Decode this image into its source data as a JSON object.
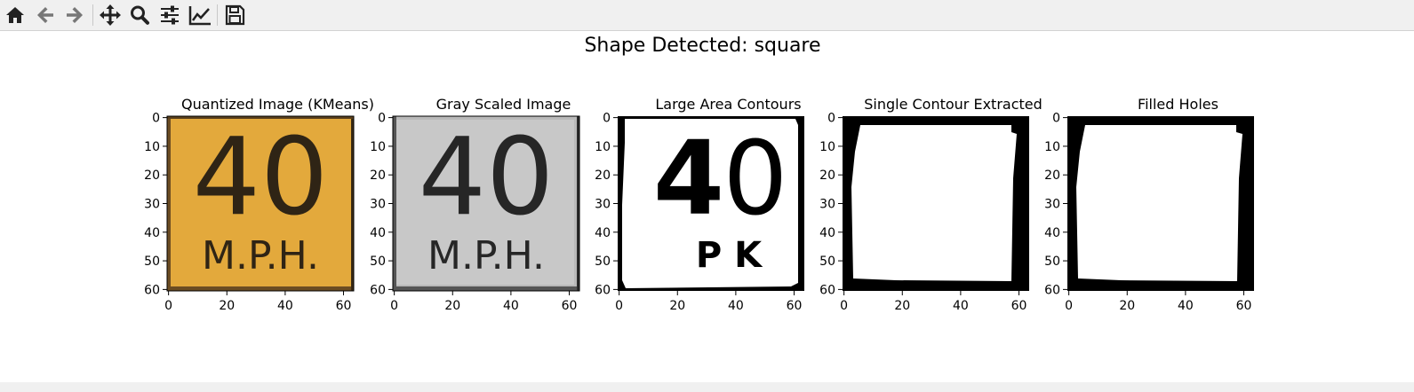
{
  "toolbar": {
    "buttons": [
      {
        "name": "home-button",
        "icon": "home-icon"
      },
      {
        "name": "back-button",
        "icon": "arrow-left-icon"
      },
      {
        "name": "forward-button",
        "icon": "arrow-right-icon"
      },
      {
        "name": "pan-button",
        "icon": "move-icon"
      },
      {
        "name": "zoom-button",
        "icon": "zoom-icon"
      },
      {
        "name": "configure-subplots-button",
        "icon": "sliders-icon"
      },
      {
        "name": "edit-axis-button",
        "icon": "chart-line-icon"
      },
      {
        "name": "save-button",
        "icon": "save-icon"
      }
    ]
  },
  "figure": {
    "suptitle": "Shape Detected: square",
    "panels": [
      {
        "title": "Quantized Image (KMeans)"
      },
      {
        "title": "Gray Scaled Image"
      },
      {
        "title": "Large Area Contours"
      },
      {
        "title": "Single Contour Extracted"
      },
      {
        "title": "Filled Holes"
      }
    ],
    "x_ticks": [
      "0",
      "20",
      "40",
      "60"
    ],
    "y_ticks": [
      "0",
      "10",
      "20",
      "30",
      "40",
      "50",
      "60"
    ],
    "sign_text": {
      "number": "40",
      "unit": "M.P.H.",
      "contour_unit": "P K"
    },
    "colors": {
      "sign_yellow": "#e3a93c",
      "sign_gray": "#b9b9b9"
    }
  }
}
